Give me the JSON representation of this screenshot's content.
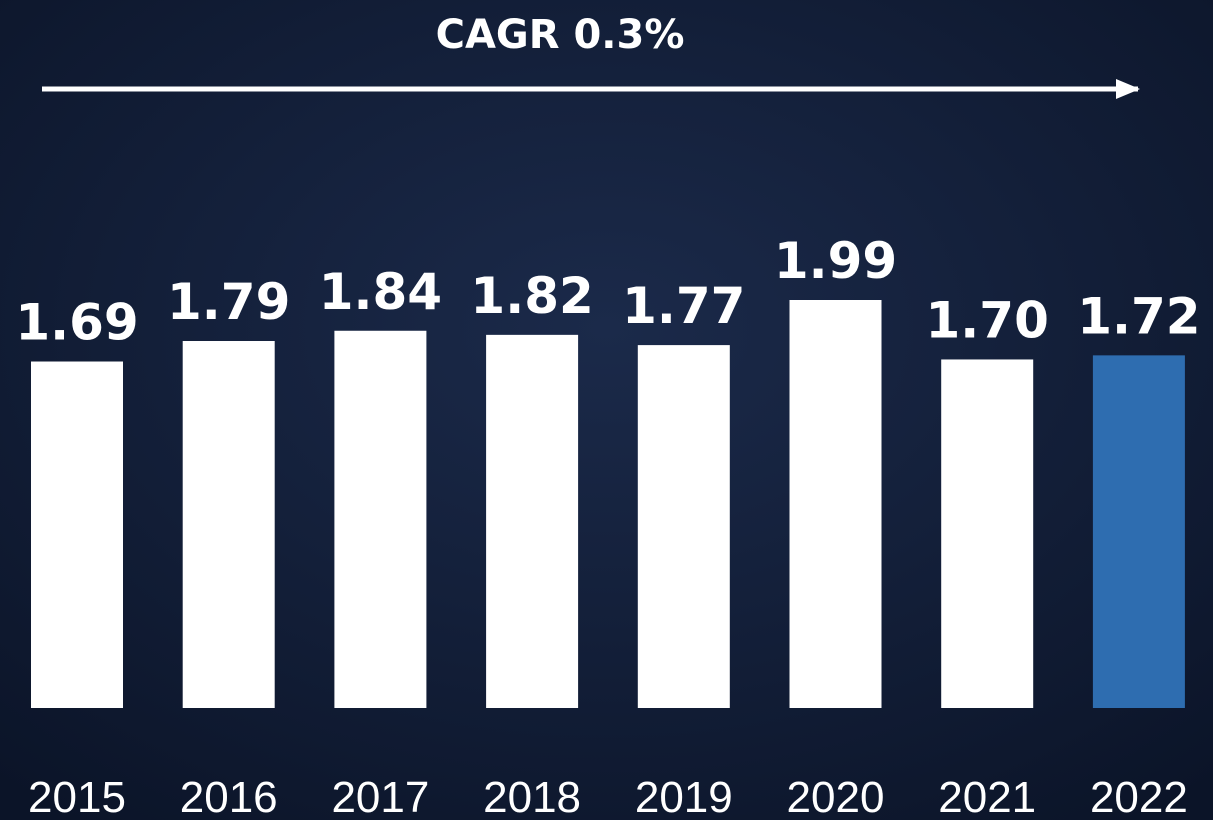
{
  "chart_data": {
    "type": "bar",
    "annotation": "CAGR 0.3%",
    "categories": [
      "2015",
      "2016",
      "2017",
      "2018",
      "2019",
      "2020",
      "2021",
      "2022"
    ],
    "values": [
      1.69,
      1.79,
      1.84,
      1.82,
      1.77,
      1.99,
      1.7,
      1.72
    ],
    "value_labels": [
      "1.69",
      "1.79",
      "1.84",
      "1.82",
      "1.77",
      "1.99",
      "1.70",
      "1.72"
    ],
    "colors": [
      "#ffffff",
      "#ffffff",
      "#ffffff",
      "#ffffff",
      "#ffffff",
      "#ffffff",
      "#ffffff",
      "#2e6db0"
    ]
  }
}
